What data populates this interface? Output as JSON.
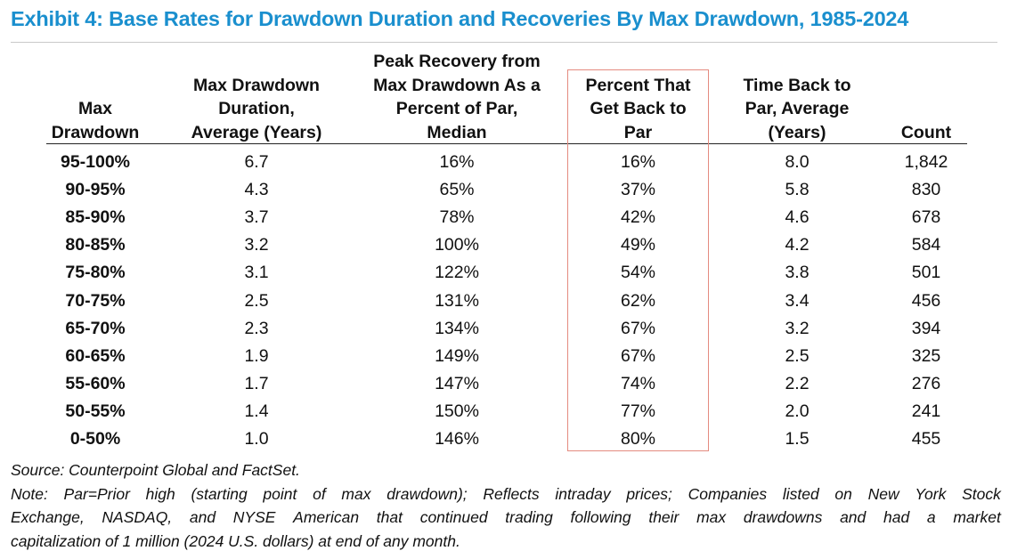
{
  "title": "Exhibit 4: Base Rates for Drawdown Duration and Recoveries By Max Drawdown, 1985-2024",
  "headers": [
    [
      "Max",
      "Drawdown"
    ],
    [
      "Max Drawdown",
      "Duration,",
      "Average (Years)"
    ],
    [
      "Peak Recovery from",
      "Max Drawdown As a",
      "Percent of Par,",
      "Median"
    ],
    [
      "Percent That",
      "Get Back to",
      "Par"
    ],
    [
      "Time Back to",
      "Par, Average",
      "(Years)"
    ],
    [
      "Count"
    ]
  ],
  "rows": [
    {
      "drawdown": "95-100%",
      "duration": "6.7",
      "peak": "16%",
      "percent": "16%",
      "time": "8.0",
      "count": "1,842"
    },
    {
      "drawdown": "90-95%",
      "duration": "4.3",
      "peak": "65%",
      "percent": "37%",
      "time": "5.8",
      "count": "830"
    },
    {
      "drawdown": "85-90%",
      "duration": "3.7",
      "peak": "78%",
      "percent": "42%",
      "time": "4.6",
      "count": "678"
    },
    {
      "drawdown": "80-85%",
      "duration": "3.2",
      "peak": "100%",
      "percent": "49%",
      "time": "4.2",
      "count": "584"
    },
    {
      "drawdown": "75-80%",
      "duration": "3.1",
      "peak": "122%",
      "percent": "54%",
      "time": "3.8",
      "count": "501"
    },
    {
      "drawdown": "70-75%",
      "duration": "2.5",
      "peak": "131%",
      "percent": "62%",
      "time": "3.4",
      "count": "456"
    },
    {
      "drawdown": "65-70%",
      "duration": "2.3",
      "peak": "134%",
      "percent": "67%",
      "time": "3.2",
      "count": "394"
    },
    {
      "drawdown": "60-65%",
      "duration": "1.9",
      "peak": "149%",
      "percent": "67%",
      "time": "2.5",
      "count": "325"
    },
    {
      "drawdown": "55-60%",
      "duration": "1.7",
      "peak": "147%",
      "percent": "74%",
      "time": "2.2",
      "count": "276"
    },
    {
      "drawdown": "50-55%",
      "duration": "1.4",
      "peak": "150%",
      "percent": "77%",
      "time": "2.0",
      "count": "241"
    },
    {
      "drawdown": "0-50%",
      "duration": "1.0",
      "peak": "146%",
      "percent": "80%",
      "time": "1.5",
      "count": "455"
    }
  ],
  "footer": {
    "source": "Source: Counterpoint Global and FactSet.",
    "note_lines": [
      "Note: Par=Prior high (starting point of max drawdown); Reflects intraday prices; Companies listed on New York Stock",
      "Exchange, NASDAQ, and NYSE American that continued trading following their max drawdowns and had a market",
      "capitalization of 1 million (2024 U.S. dollars) at end of any month."
    ]
  },
  "colors": {
    "title": "#1a8fce",
    "highlight_border": "#e48b80"
  }
}
